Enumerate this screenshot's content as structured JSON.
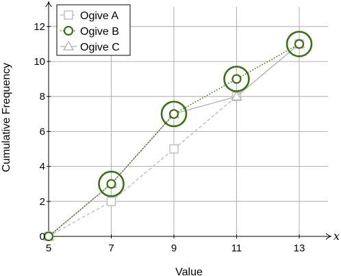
{
  "chart_data": {
    "type": "line",
    "xlabel": "Value",
    "ylabel": "Cumulative Frequency",
    "axis_var": "x",
    "xlim": [
      5,
      14.2
    ],
    "ylim": [
      0,
      13.5
    ],
    "xticks": [
      5,
      7,
      9,
      11,
      13
    ],
    "yticks": [
      0,
      2,
      4,
      6,
      8,
      10,
      12
    ],
    "grid": true,
    "legend_position": "top-left",
    "series": [
      {
        "name": "Ogive A",
        "x": [
          5,
          7,
          9,
          11,
          13
        ],
        "y": [
          0,
          2,
          5,
          8,
          11
        ],
        "color": "#c0c0c0",
        "marker": "square",
        "line": "dashed"
      },
      {
        "name": "Ogive B",
        "x": [
          5,
          7,
          9,
          11,
          13
        ],
        "y": [
          0,
          3,
          7,
          9,
          11
        ],
        "color": "#3a6f12",
        "marker": "circle",
        "line": "dotted",
        "highlighted_points": [
          7,
          9,
          11,
          13
        ]
      },
      {
        "name": "Ogive C",
        "x": [
          5,
          7,
          9,
          11,
          13
        ],
        "y": [
          0,
          3,
          7,
          8,
          11
        ],
        "color": "#b8b8b8",
        "marker": "triangle",
        "line": "solid"
      }
    ]
  }
}
